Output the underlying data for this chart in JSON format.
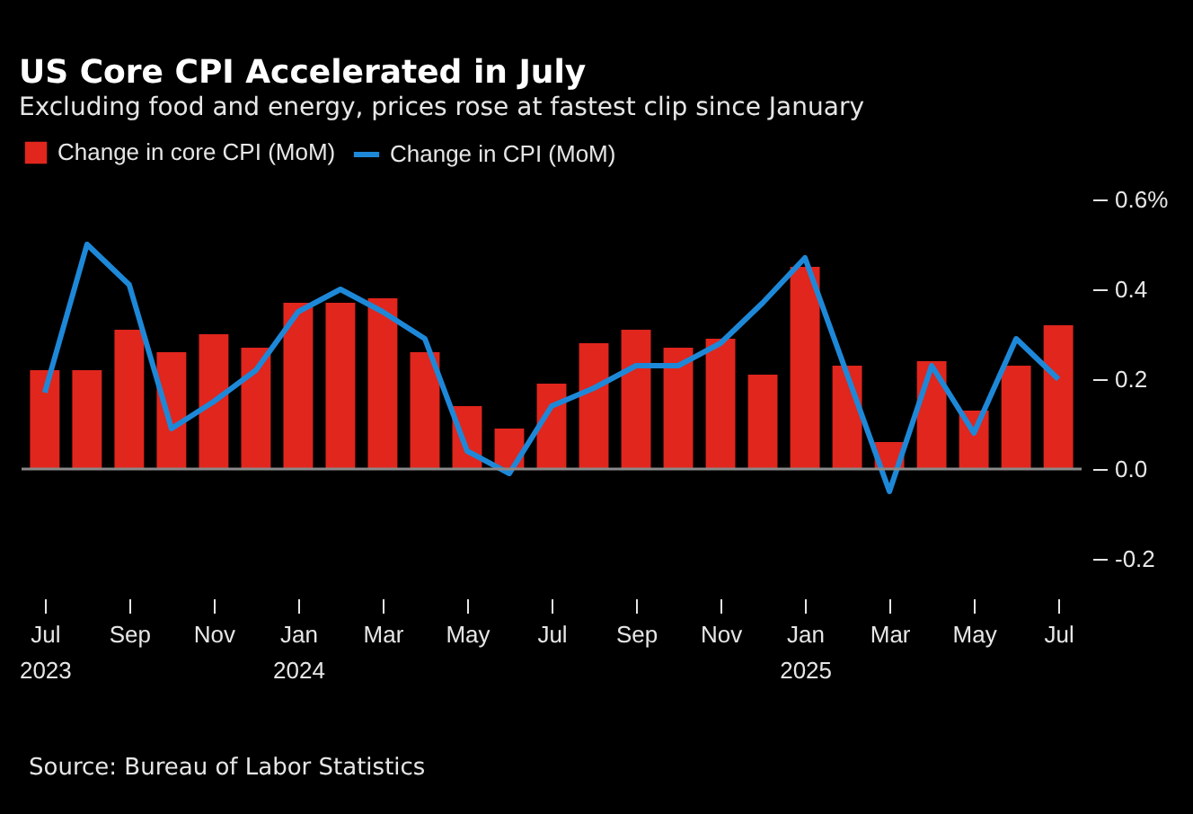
{
  "chart_data": {
    "type": "bar",
    "title": "US Core CPI Accelerated in July",
    "subtitle": "Excluding food and energy, prices rose at fastest clip since January",
    "categories": [
      "Jul\n2023",
      null,
      "Sep",
      null,
      "Nov",
      null,
      "Jan\n2024",
      null,
      "Mar",
      null,
      "May",
      null,
      "Jul",
      null,
      "Sep",
      null,
      "Nov",
      null,
      "Jan\n2025",
      null,
      "Mar",
      null,
      "May",
      null,
      "Jul"
    ],
    "series": [
      {
        "name": "Change in core CPI (MoM)",
        "color": "#e0261d",
        "values": [
          0.22,
          0.22,
          0.31,
          0.26,
          0.3,
          0.27,
          0.37,
          0.37,
          0.38,
          0.26,
          0.14,
          0.09,
          0.19,
          0.28,
          0.31,
          0.27,
          0.29,
          0.21,
          0.45,
          0.23,
          0.06,
          0.24,
          0.13,
          0.23,
          0.32
        ]
      },
      {
        "name": "Change in CPI (MoM)",
        "type": "line",
        "color": "#1e88d8",
        "values": [
          0.17,
          0.5,
          0.41,
          0.09,
          0.15,
          0.22,
          0.35,
          0.4,
          0.35,
          0.29,
          0.04,
          -0.01,
          0.14,
          0.18,
          0.23,
          0.23,
          0.28,
          0.37,
          0.47,
          0.21,
          -0.05,
          0.23,
          0.08,
          0.29,
          0.2
        ]
      }
    ],
    "ylim": [
      -0.2,
      0.6
    ],
    "yticks": [
      {
        "value": 0.6,
        "label": "0.6%"
      },
      0.4,
      0.2,
      {
        "value": 0,
        "label": "0.0"
      },
      -0.2
    ],
    "ref_lines": [
      {
        "axis": "y",
        "value": 0,
        "color": "#8a8a8a"
      }
    ],
    "legend": "top left",
    "grid": false,
    "annotations": [
      "Source: Bureau of Labor Statistics"
    ]
  }
}
